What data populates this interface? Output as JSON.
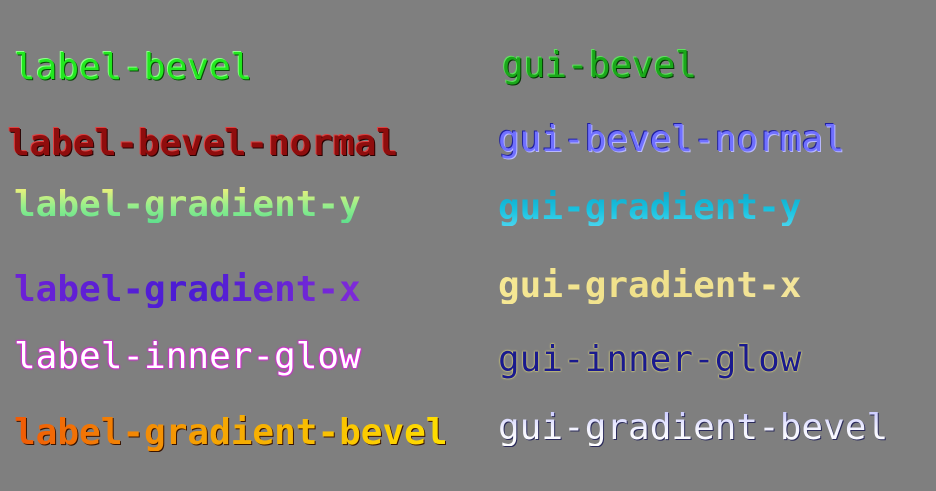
{
  "labels": {
    "left": [
      "label-bevel",
      "label-bevel-normal",
      "label-gradient-y",
      "label-gradient-x",
      "label-inner-glow",
      "label-gradient-bevel"
    ],
    "right": [
      "gui-bevel",
      "gui-bevel-normal",
      "gui-gradient-y",
      "gui-gradient-x",
      "gui-inner-glow",
      "gui-gradient-bevel"
    ]
  },
  "colors": {
    "background": "#7f7f7f",
    "label_bevel": "#22e81f",
    "label_bevel_normal": "#8f0d0d",
    "label_gradient_y": [
      "#f2f07a",
      "#5fdf8d"
    ],
    "label_gradient_x": [
      "#6d21d6",
      "#4a1cd4",
      "#7f2ad8"
    ],
    "label_inner_glow": [
      "#ffffff",
      "#ff00ff"
    ],
    "label_gradient_bevel": [
      "#f05a06",
      "#ffdf00"
    ],
    "gui_bevel": "#1aa81a",
    "gui_bevel_normal": "#7070ff",
    "gui_gradient_y": [
      "#0fa6c9",
      "#48d4ee"
    ],
    "gui_gradient_x": [
      "#f6e894",
      "#efe08a"
    ],
    "gui_inner_glow": [
      "#1a1a8e",
      "#e8e078"
    ],
    "gui_gradient_bevel": [
      "#c9c9ff",
      "#ffffff"
    ]
  }
}
